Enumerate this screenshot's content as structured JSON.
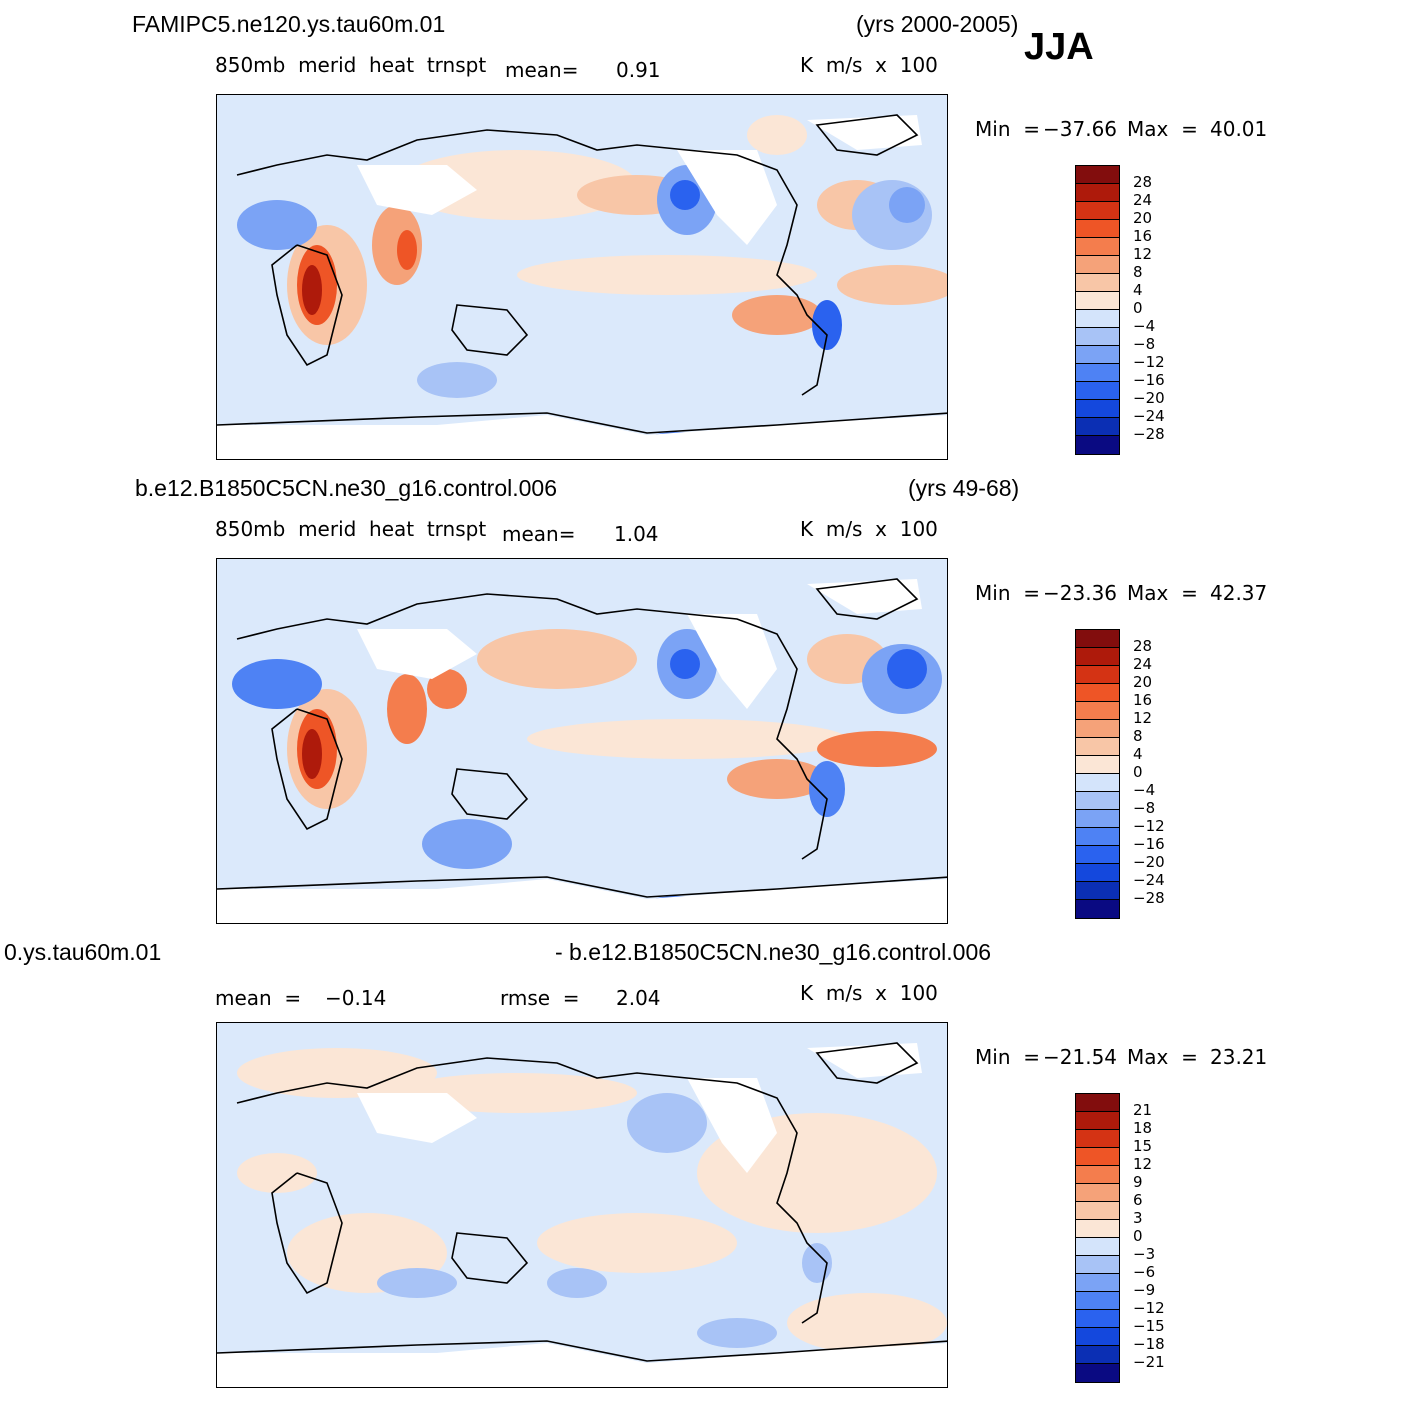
{
  "season": "JJA",
  "colors": {
    "land_mask": "#ffffff",
    "coast": "#000000",
    "scale_12": [
      "#0a0a82",
      "#0b2fb4",
      "#1448dd",
      "#2a62ef",
      "#4e82f4",
      "#7ba3f5",
      "#a8c3f6",
      "#d4e4fb",
      "#fbe6d6",
      "#f8c6a7",
      "#f5a279",
      "#f47d4d",
      "#ee5526",
      "#d43314",
      "#ae1a0b",
      "#820d0d"
    ]
  },
  "panels": [
    {
      "case": "FAMIPC5.ne120.ys.tau60m.01",
      "years": "(yrs 2000-2005)",
      "field": "850mb  merid  heat  trnspt",
      "mean_label": "mean=",
      "mean_value": "0.91",
      "units": "K  m/s  x  100",
      "min_label": "Min  =",
      "min_value": "−37.66",
      "max_label": "Max  =",
      "max_value": "40.01",
      "colorbar_levels": [
        "28",
        "24",
        "20",
        "16",
        "12",
        "8",
        "4",
        "0",
        "−4",
        "−8",
        "−12",
        "−16",
        "−20",
        "−24",
        "−28"
      ]
    },
    {
      "case": "b.e12.B1850C5CN.ne30_g16.control.006",
      "years": "(yrs 49-68)",
      "field": "850mb  merid  heat  trnspt",
      "mean_label": "mean=",
      "mean_value": "1.04",
      "units": "K  m/s  x  100",
      "min_label": "Min  =",
      "min_value": "−23.36",
      "max_label": "Max  =",
      "max_value": "42.37",
      "colorbar_levels": [
        "28",
        "24",
        "20",
        "16",
        "12",
        "8",
        "4",
        "0",
        "−4",
        "−8",
        "−12",
        "−16",
        "−20",
        "−24",
        "−28"
      ]
    },
    {
      "case_left": "0.ys.tau60m.01",
      "case_right": "- b.e12.B1850C5CN.ne30_g16.control.006",
      "mean_label": "mean  =",
      "mean_value": "−0.14",
      "rmse_label": "rmse  =",
      "rmse_value": "2.04",
      "units": "K  m/s  x  100",
      "min_label": "Min  =",
      "min_value": "−21.54",
      "max_label": "Max  =",
      "max_value": "23.21",
      "colorbar_levels": [
        "21",
        "18",
        "15",
        "12",
        "9",
        "6",
        "3",
        "0",
        "−3",
        "−6",
        "−9",
        "−12",
        "−15",
        "−18",
        "−21"
      ]
    }
  ]
}
